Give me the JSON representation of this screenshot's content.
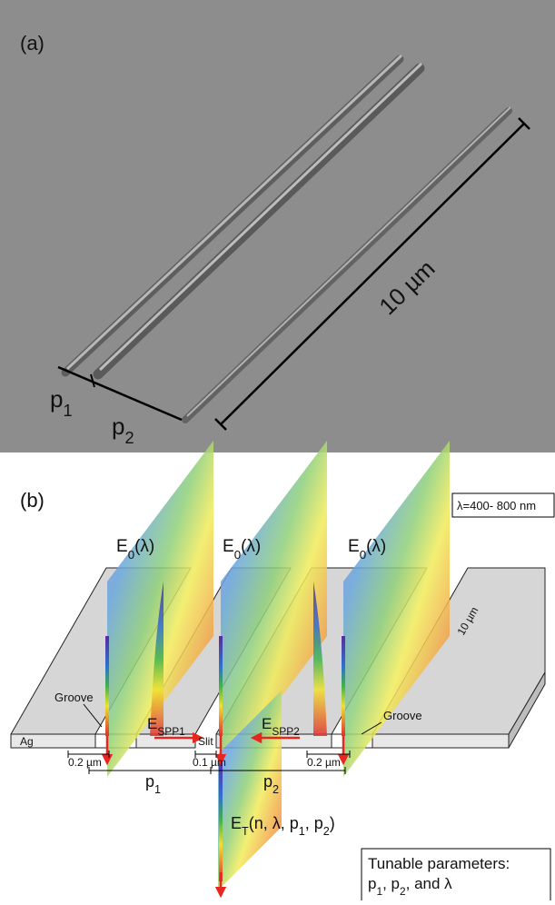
{
  "panel_a": {
    "label": "(a)",
    "p1": [
      "p",
      "1"
    ],
    "p2": [
      "p",
      "2"
    ],
    "scale": "10 µm"
  },
  "panel_b": {
    "label": "(b)",
    "wavelength": "λ=400- 800 nm",
    "incident": [
      [
        "E",
        "0",
        "(λ)"
      ],
      [
        "E",
        "0",
        "(λ)"
      ],
      [
        "E",
        "0",
        "(λ)"
      ]
    ],
    "grooves": [
      "Groove",
      "Groove"
    ],
    "metal": "Ag",
    "spp1": [
      "E",
      "SPP1"
    ],
    "slit": "Slit",
    "spp2": [
      "E",
      "SPP2"
    ],
    "length": "10 µm",
    "widths": [
      "0.2 µm",
      "0.1 µm",
      "0.2 µm"
    ],
    "periods": [
      [
        "p",
        "1"
      ],
      [
        "p",
        "2"
      ]
    ],
    "transmitted": [
      "E",
      "T",
      "(n, λ, p",
      "1",
      ", p",
      "2",
      ")"
    ],
    "tunable": {
      "title": "Tunable parameters:",
      "text": [
        "p",
        "1",
        ", p",
        "2",
        ", and λ"
      ]
    }
  }
}
